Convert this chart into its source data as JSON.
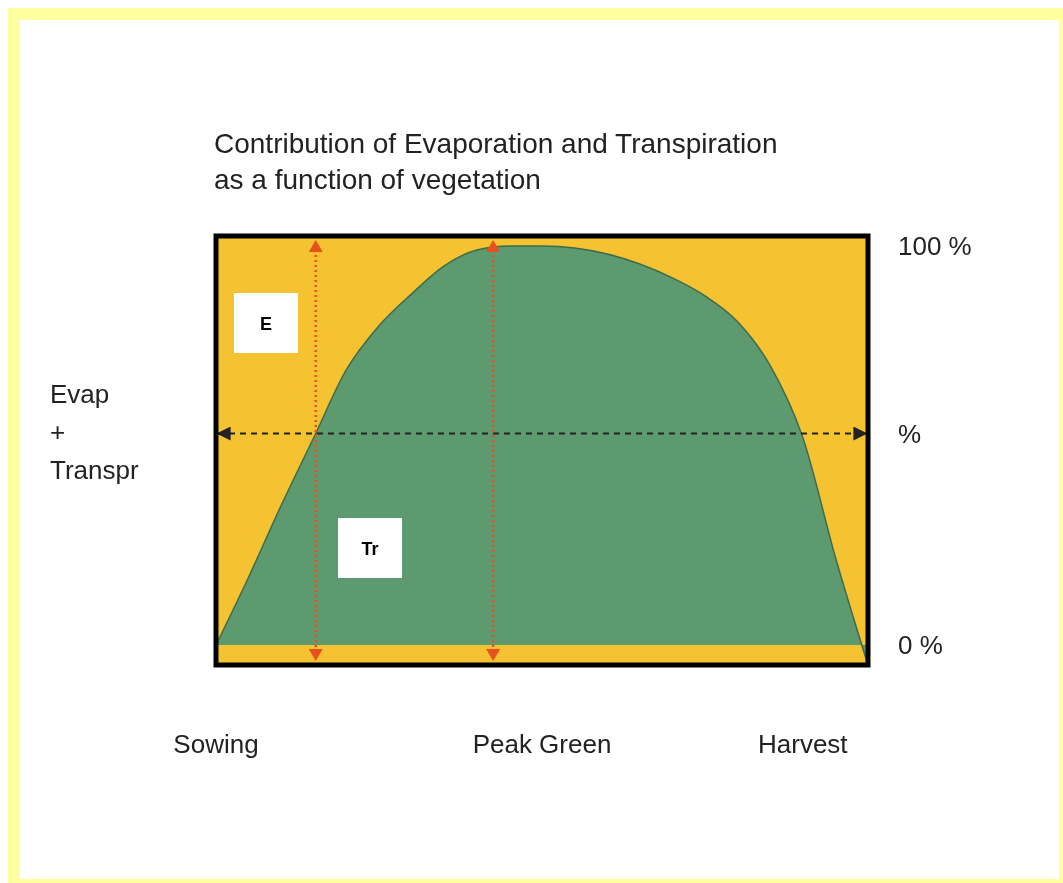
{
  "chart_data": {
    "type": "area",
    "title": "Contribution of Evaporation and Transpiration\nas a function of vegetation",
    "ylabel": "Evap\n+\nTranspr",
    "categories": [
      "Sowing",
      null,
      null,
      null,
      null,
      null,
      null,
      null,
      null,
      null,
      "Peak Green",
      null,
      null,
      null,
      null,
      null,
      null,
      null,
      "Harvest",
      null,
      null
    ],
    "series": [
      {
        "color": "#5e9a70",
        "values": [
          0,
          17,
          35,
          52,
          69,
          80,
          88,
          95,
          99,
          100,
          100,
          99.5,
          98,
          95.5,
          92,
          87.5,
          81,
          70,
          52,
          22,
          -5
        ]
      }
    ],
    "ylim": [
      -5,
      102.5
    ],
    "yticks": [
      {
        "value": 0,
        "label": "0 %"
      },
      {
        "value": 53,
        "label": "%"
      },
      {
        "value": 100,
        "label": "100 %"
      }
    ],
    "ref_lines": [
      {
        "axis": "y",
        "value": 53,
        "color": "#222222",
        "line_style": "dashed"
      }
    ],
    "annotations": [
      "E",
      "Tr"
    ]
  }
}
